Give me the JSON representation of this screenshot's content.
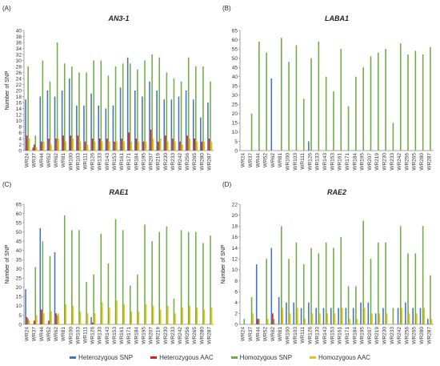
{
  "colors": {
    "het_snp": "#4472C4",
    "het_aac": "#E41A1C",
    "hom_snp": "#70AD47",
    "hom_aac": "#F2C200"
  },
  "legend": [
    {
      "name": "Heterozygous SNP",
      "color_key": "het_snp"
    },
    {
      "name": "Heterozygous AAC",
      "color_key": "het_aac"
    },
    {
      "name": "Homozygous SNP",
      "color_key": "hom_snp"
    },
    {
      "name": "Homozygous AAC",
      "color_key": "hom_aac"
    }
  ],
  "chart_data": [
    {
      "type": "bar",
      "panel_label": "(A)",
      "title": "AN3-1",
      "ylabel": "Number of SNP",
      "xlabel": "",
      "ylim": [
        0,
        40
      ],
      "yticks": [
        0,
        2,
        4,
        6,
        8,
        10,
        12,
        14,
        16,
        18,
        20,
        22,
        24,
        26,
        28,
        30,
        32,
        34,
        36,
        38,
        40
      ],
      "grid": false,
      "categories": [
        "WR24",
        "WR37",
        "WR44",
        "WR52",
        "WR62",
        "WR81",
        "WR100",
        "WR103",
        "WR111",
        "WR126",
        "WR133",
        "WR143",
        "WR153",
        "WR161",
        "WR171",
        "WR184",
        "WR195",
        "WR207",
        "WR219",
        "WR230",
        "WR233",
        "WR242",
        "WR256",
        "WR265",
        "WR280",
        "WR287"
      ],
      "series": [
        {
          "name": "Heterozygous SNP",
          "values": [
            17,
            1,
            18,
            20,
            18,
            20,
            24,
            15,
            15,
            19,
            15,
            14,
            15,
            21,
            31,
            20,
            18,
            23,
            20,
            17,
            17,
            18,
            20,
            17,
            11,
            16
          ]
        },
        {
          "name": "Heterozygous AAC",
          "values": [
            5,
            2,
            3,
            4,
            4,
            5,
            5,
            5,
            3,
            4,
            4,
            4,
            3,
            4,
            6,
            4,
            3,
            7,
            3,
            5,
            4,
            3,
            5,
            4,
            3,
            4
          ]
        },
        {
          "name": "Homozygous SNP",
          "values": [
            28,
            5,
            30,
            23,
            36,
            29,
            28,
            26,
            26,
            30,
            30,
            25,
            28,
            29,
            29,
            27,
            30,
            32,
            31,
            26,
            24,
            23,
            31,
            28,
            28,
            23
          ]
        },
        {
          "name": "Homozygous AAC",
          "values": [
            4,
            1,
            3,
            2,
            4,
            3,
            4,
            3,
            2,
            3,
            3,
            3,
            3,
            3,
            3,
            3,
            3,
            4,
            4,
            3,
            3,
            2,
            4,
            3,
            3,
            3
          ]
        }
      ]
    },
    {
      "type": "bar",
      "panel_label": "(B)",
      "title": "LABA1",
      "ylabel": "",
      "xlabel": "",
      "ylim": [
        0,
        65
      ],
      "yticks": [
        0,
        5,
        10,
        15,
        20,
        25,
        30,
        35,
        40,
        45,
        50,
        55,
        60,
        65
      ],
      "grid": false,
      "categories": [
        "WR24",
        "WR37",
        "WR44",
        "WR52",
        "WR62",
        "WR81",
        "WR100",
        "WR103",
        "WR111",
        "WR126",
        "WR133",
        "WR143",
        "WR153",
        "WR161",
        "WR171",
        "WR184",
        "WR195",
        "WR207",
        "WR219",
        "WR230",
        "WR233",
        "WR242",
        "WR256",
        "WR265",
        "WR280",
        "WR287"
      ],
      "series": [
        {
          "name": "Heterozygous SNP",
          "values": [
            0,
            0,
            0,
            0,
            39,
            0,
            0,
            0,
            0,
            5,
            0,
            0,
            0,
            0,
            0,
            0,
            0,
            0,
            0,
            0,
            0,
            0,
            0,
            0,
            0,
            0
          ]
        },
        {
          "name": "Heterozygous AAC",
          "values": [
            0,
            0,
            0,
            0,
            0,
            0,
            0,
            0,
            0,
            0,
            0,
            0,
            0,
            0,
            0,
            0,
            0,
            0,
            0,
            0,
            0,
            0,
            0,
            0,
            0,
            0
          ]
        },
        {
          "name": "Homozygous SNP",
          "values": [
            0,
            20,
            59,
            53,
            0,
            61,
            48,
            57,
            28,
            50,
            59,
            40,
            32,
            55,
            24,
            40,
            45,
            51,
            53,
            55,
            15,
            58,
            52,
            54,
            52,
            56
          ]
        },
        {
          "name": "Homozygous AAC",
          "values": [
            0,
            0,
            0,
            0,
            0,
            0,
            0,
            0,
            0,
            0,
            0,
            0,
            0,
            0,
            0,
            0,
            0,
            0,
            0,
            0,
            0,
            0,
            0,
            0,
            0,
            0
          ]
        }
      ]
    },
    {
      "type": "bar",
      "panel_label": "(C)",
      "title": "RAE1",
      "ylabel": "Number of SNP",
      "xlabel": "",
      "ylim": [
        0,
        65
      ],
      "yticks": [
        0,
        5,
        10,
        15,
        20,
        25,
        30,
        35,
        40,
        45,
        50,
        55,
        60,
        65
      ],
      "grid": false,
      "categories": [
        "WR24",
        "WR37",
        "WR44",
        "WR52",
        "WR62",
        "WR81",
        "WR100",
        "WR103",
        "WR111",
        "WR126",
        "WR133",
        "WR143",
        "WR153",
        "WR161",
        "WR171",
        "WR184",
        "WR195",
        "WR207",
        "WR219",
        "WR230",
        "WR233",
        "WR242",
        "WR256",
        "WR265",
        "WR280",
        "WR287"
      ],
      "series": [
        {
          "name": "Heterozygous SNP",
          "values": [
            19,
            0,
            52,
            0,
            39,
            0,
            0,
            0,
            0,
            4,
            0,
            0,
            0,
            0,
            0,
            0,
            0,
            0,
            0,
            0,
            0,
            0,
            0,
            0,
            0,
            0
          ]
        },
        {
          "name": "Heterozygous AAC",
          "values": [
            4,
            2,
            8,
            2,
            6,
            0,
            0,
            0,
            0,
            1,
            0,
            0,
            0,
            0,
            0,
            0,
            0,
            0,
            0,
            0,
            0,
            0,
            0,
            0,
            0,
            0
          ]
        },
        {
          "name": "Homozygous SNP",
          "values": [
            3,
            31,
            45,
            37,
            5,
            59,
            51,
            51,
            23,
            27,
            49,
            33,
            57,
            51,
            21,
            27,
            54,
            45,
            50,
            53,
            14,
            51,
            50,
            50,
            44,
            48
          ]
        },
        {
          "name": "Homozygous AAC",
          "values": [
            2,
            5,
            6,
            7,
            6,
            11,
            10,
            7,
            6,
            6,
            12,
            9,
            13,
            11,
            7,
            7,
            11,
            10,
            8,
            10,
            6,
            9,
            10,
            9,
            8,
            9
          ]
        }
      ]
    },
    {
      "type": "bar",
      "panel_label": "(D)",
      "title": "RAE2",
      "ylabel": "Number of SNP",
      "xlabel": "",
      "ylim": [
        0,
        22
      ],
      "yticks": [
        0,
        2,
        4,
        6,
        8,
        10,
        12,
        14,
        16,
        18,
        20,
        22
      ],
      "grid": false,
      "categories": [
        "WR24",
        "WR37",
        "WR44",
        "WR52",
        "WR62",
        "WR81",
        "WR100",
        "WR103",
        "WR111",
        "WR126",
        "WR133",
        "WR143",
        "WR153",
        "WR161",
        "WR171",
        "WR184",
        "WR195",
        "WR207",
        "WR219",
        "WR230",
        "WR233",
        "WR242",
        "WR256",
        "WR265",
        "WR280",
        "WR287"
      ],
      "series": [
        {
          "name": "Heterozygous SNP",
          "values": [
            0,
            0,
            11,
            0,
            14,
            5,
            4,
            4,
            3,
            4,
            3,
            3,
            3,
            3,
            3,
            3,
            4,
            4,
            2,
            3,
            0,
            3,
            4,
            3,
            3,
            1
          ]
        },
        {
          "name": "Heterozygous AAC",
          "values": [
            0,
            0,
            1,
            0,
            2,
            0,
            0,
            0,
            0,
            0,
            0,
            0,
            0,
            0,
            0,
            0,
            0,
            0,
            0,
            0,
            0,
            0,
            0,
            0,
            0,
            0
          ]
        },
        {
          "name": "Homozygous SNP",
          "values": [
            1,
            5,
            1,
            12,
            1,
            18,
            12,
            15,
            11,
            14,
            13,
            15,
            14,
            16,
            7,
            7,
            19,
            12,
            15,
            15,
            3,
            18,
            13,
            13,
            18,
            9
          ]
        },
        {
          "name": "Homozygous AAC",
          "values": [
            0,
            2,
            0,
            1,
            0,
            3,
            2,
            3,
            1,
            2,
            2,
            2,
            2,
            3,
            1,
            1,
            3,
            2,
            2,
            2,
            0,
            3,
            2,
            2,
            3,
            1
          ]
        }
      ]
    }
  ]
}
